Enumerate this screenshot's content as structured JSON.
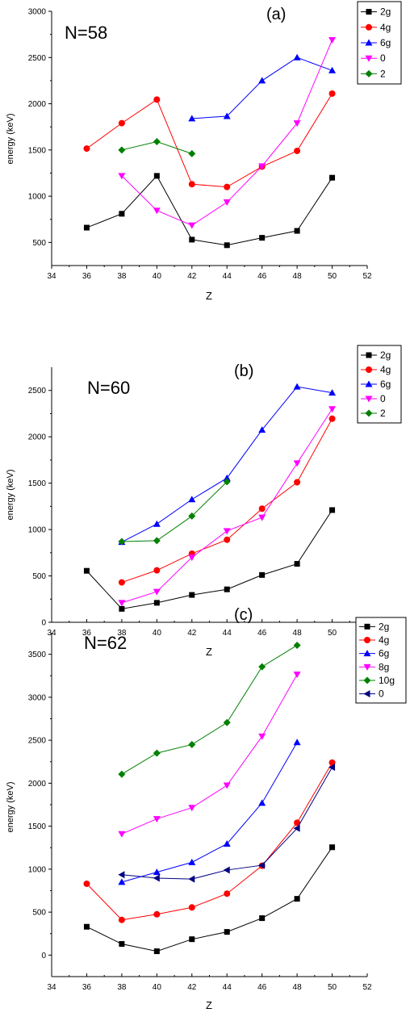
{
  "chart_data": [
    {
      "type": "line",
      "panel_label": "(a)",
      "annotation": "N=58",
      "xlabel": "Z",
      "ylabel": "energy (keV)",
      "xlim": [
        34,
        52
      ],
      "ylim": [
        250,
        3000
      ],
      "xticks": [
        34,
        36,
        38,
        40,
        42,
        44,
        46,
        48,
        50,
        52
      ],
      "yticks": [
        500,
        1000,
        1500,
        2000,
        2500,
        3000
      ],
      "legend_position": "top-right",
      "series": [
        {
          "name": "2g",
          "color": "#000000",
          "marker": "square",
          "x": [
            36,
            38,
            40,
            42,
            44,
            46,
            48,
            50
          ],
          "y": [
            660,
            810,
            1220,
            530,
            470,
            550,
            625,
            1200
          ]
        },
        {
          "name": "4g",
          "color": "#ff0000",
          "marker": "circle",
          "x": [
            36,
            38,
            40,
            42,
            44,
            46,
            48,
            50
          ],
          "y": [
            1515,
            1790,
            2045,
            1130,
            1100,
            1320,
            1490,
            2110
          ]
        },
        {
          "name": "6g",
          "color": "#0000ff",
          "marker": "triangle-up",
          "x": [
            42,
            44,
            46,
            48,
            50
          ],
          "y": [
            1840,
            1865,
            2250,
            2500,
            2360
          ]
        },
        {
          "name": "0",
          "color": "#ff00ff",
          "marker": "triangle-down",
          "x": [
            38,
            40,
            42,
            44,
            46,
            48,
            50
          ],
          "y": [
            1220,
            845,
            685,
            935,
            1325,
            1790,
            2690
          ]
        },
        {
          "name": "2",
          "color": "#008000",
          "marker": "diamond",
          "x": [
            38,
            40,
            42
          ],
          "y": [
            1500,
            1590,
            1460
          ]
        }
      ]
    },
    {
      "type": "line",
      "panel_label": "(b)",
      "annotation": "N=60",
      "xlabel": "Z",
      "ylabel": "energy (keV)",
      "xlim": [
        34,
        52
      ],
      "ylim": [
        0,
        2750
      ],
      "xticks": [
        34,
        36,
        38,
        40,
        42,
        44,
        46,
        48,
        50,
        52
      ],
      "yticks": [
        0,
        500,
        1000,
        1500,
        2000,
        2500
      ],
      "legend_position": "top-right",
      "series": [
        {
          "name": "2g",
          "color": "#000000",
          "marker": "square",
          "x": [
            36,
            38,
            40,
            42,
            44,
            46,
            48,
            50
          ],
          "y": [
            555,
            145,
            210,
            295,
            355,
            510,
            630,
            1210
          ]
        },
        {
          "name": "4g",
          "color": "#ff0000",
          "marker": "circle",
          "x": [
            38,
            40,
            42,
            44,
            46,
            48,
            50
          ],
          "y": [
            430,
            560,
            740,
            890,
            1225,
            1510,
            2195
          ]
        },
        {
          "name": "6g",
          "color": "#0000ff",
          "marker": "triangle-up",
          "x": [
            38,
            40,
            42,
            44,
            46,
            48,
            50
          ],
          "y": [
            865,
            1060,
            1325,
            1555,
            2075,
            2540,
            2475
          ]
        },
        {
          "name": "0",
          "color": "#ff00ff",
          "marker": "triangle-down",
          "x": [
            38,
            40,
            42,
            44,
            46,
            48,
            50
          ],
          "y": [
            210,
            330,
            700,
            985,
            1130,
            1715,
            2300
          ]
        },
        {
          "name": "2",
          "color": "#008000",
          "marker": "diamond",
          "x": [
            38,
            40,
            42,
            44
          ],
          "y": [
            870,
            880,
            1145,
            1515
          ]
        }
      ]
    },
    {
      "type": "line",
      "panel_label": "(c)",
      "annotation": "N=62",
      "xlabel": "Z",
      "ylabel": "energy (keV)",
      "xlim": [
        34,
        52
      ],
      "ylim": [
        -250,
        3750
      ],
      "xticks": [
        34,
        36,
        38,
        40,
        42,
        44,
        46,
        48,
        50,
        52
      ],
      "yticks": [
        0,
        500,
        1000,
        1500,
        2000,
        2500,
        3000,
        3500
      ],
      "legend_position": "top-right",
      "series": [
        {
          "name": "2g",
          "color": "#000000",
          "marker": "square",
          "x": [
            36,
            38,
            40,
            42,
            44,
            46,
            48,
            50
          ],
          "y": [
            330,
            130,
            45,
            185,
            270,
            430,
            655,
            1255
          ]
        },
        {
          "name": "4g",
          "color": "#ff0000",
          "marker": "circle",
          "x": [
            36,
            38,
            40,
            42,
            44,
            46,
            48,
            50
          ],
          "y": [
            830,
            410,
            475,
            555,
            715,
            1040,
            1540,
            2240
          ]
        },
        {
          "name": "6g",
          "color": "#0000ff",
          "marker": "triangle-up",
          "x": [
            38,
            40,
            42,
            44,
            46,
            48
          ],
          "y": [
            850,
            965,
            1080,
            1295,
            1770,
            2475
          ]
        },
        {
          "name": "8g",
          "color": "#ff00ff",
          "marker": "triangle-down",
          "x": [
            38,
            40,
            42,
            44,
            46,
            48
          ],
          "y": [
            1410,
            1585,
            1715,
            1975,
            2545,
            3265
          ]
        },
        {
          "name": "10g",
          "color": "#008000",
          "marker": "diamond",
          "x": [
            38,
            40,
            42,
            44,
            46,
            48
          ],
          "y": [
            2105,
            2350,
            2450,
            2705,
            3355,
            3605
          ]
        },
        {
          "name": "0",
          "color": "#000080",
          "marker": "triangle-left",
          "x": [
            38,
            40,
            42,
            44,
            46,
            48,
            50
          ],
          "y": [
            935,
            895,
            885,
            990,
            1045,
            1475,
            2185
          ]
        }
      ]
    }
  ]
}
